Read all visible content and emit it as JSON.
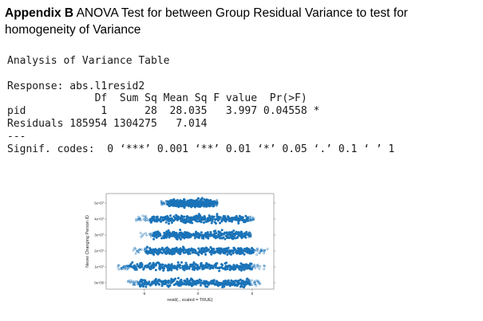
{
  "caption": {
    "label": "Appendix B",
    "text": " ANOVA Test for between Group Residual Variance to test for homogeneity of Variance"
  },
  "console": {
    "title": "Analysis of Variance Table",
    "response": "Response: abs.l1resid2",
    "header": "              Df  Sum Sq Mean Sq F value  Pr(>F)  ",
    "row_pid": "pid            1      28  28.035   3.997 0.04558 *",
    "row_residuals": "Residuals 185954 1304275   7.014                  ",
    "separator": "---",
    "signif": "Signif. codes:  0 ‘***’ 0.001 ‘**’ 0.01 ‘*’ 0.05 ‘.’ 0.1 ‘ ’ 1"
  },
  "chart_data": {
    "type": "scatter",
    "xlabel": "resid(., scaled = TRUE)",
    "ylabel": "Never Changing Person ID",
    "x_ticks": [
      "-5",
      "0",
      "5"
    ],
    "y_ticks": [
      "0e+00",
      "1e+07",
      "2e+07",
      "3e+07",
      "4e+07",
      "5e+07"
    ],
    "xlim": [
      -8.5,
      7
    ],
    "ylim": [
      -0.4,
      5.6
    ],
    "y_unit": "1e+07",
    "point_color": "#1a73b8",
    "bands": [
      {
        "y": 0.0,
        "x_range": [
          -6.6,
          5.8
        ],
        "dense_range": [
          -5.4,
          4.8
        ]
      },
      {
        "y": 1.0,
        "x_range": [
          -7.6,
          6.2
        ],
        "dense_range": [
          -6.4,
          5.0
        ]
      },
      {
        "y": 2.0,
        "x_range": [
          -6.0,
          6.5
        ],
        "dense_range": [
          -4.8,
          5.1
        ]
      },
      {
        "y": 3.0,
        "x_range": [
          -5.4,
          4.9
        ],
        "dense_range": [
          -4.2,
          4.6
        ]
      },
      {
        "y": 4.0,
        "x_range": [
          -5.8,
          5.2
        ],
        "dense_range": [
          -4.4,
          4.6
        ]
      },
      {
        "y": 5.0,
        "x_range": [
          -3.4,
          1.8
        ],
        "dense_range": [
          -2.8,
          1.6
        ]
      }
    ]
  }
}
